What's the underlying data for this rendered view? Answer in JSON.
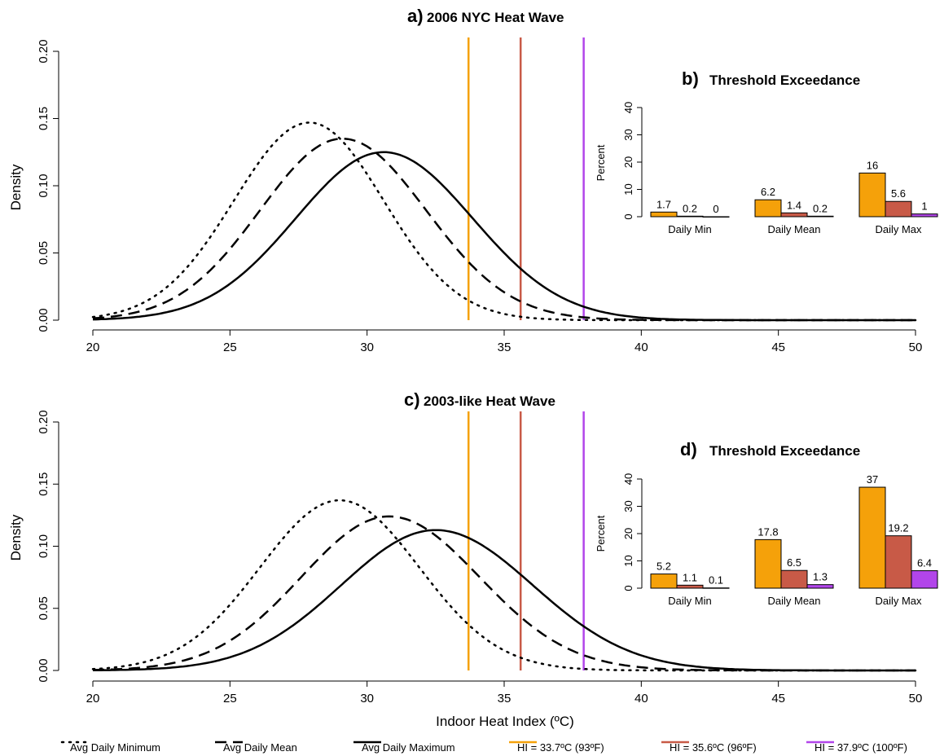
{
  "colors": {
    "t1": "#f5a10a",
    "t2": "#c85a47",
    "t3": "#b245ea",
    "curve": "#000000"
  },
  "legend": [
    {
      "label": "Avg Daily Minimum",
      "style": "dotted",
      "color": "#000000"
    },
    {
      "label": "Avg Daily Mean",
      "style": "dashed",
      "color": "#000000"
    },
    {
      "label": "Avg Daily Maximum",
      "style": "solid",
      "color": "#000000"
    },
    {
      "label": "HI = 33.7ºC (93ºF)",
      "style": "solid",
      "color": "#f5a10a"
    },
    {
      "label": "HI = 35.6ºC (96ºF)",
      "style": "solid",
      "color": "#c85a47"
    },
    {
      "label": "HI = 37.9ºC (100ºF)",
      "style": "solid",
      "color": "#b245ea"
    }
  ],
  "xlabel": "Indoor Heat Index (ºC)",
  "chart_data": [
    {
      "type": "line",
      "panel_letter": "a)",
      "title": "2006 NYC Heat Wave",
      "ylabel": "Density",
      "xlim": [
        20,
        50
      ],
      "ylim": [
        0,
        0.2
      ],
      "xticks": [
        20,
        25,
        30,
        35,
        40,
        45,
        50
      ],
      "yticks": [
        "0.00",
        "0.05",
        "0.10",
        "0.15",
        "0.20"
      ],
      "thresholds": [
        33.7,
        35.6,
        37.9
      ],
      "series": [
        {
          "name": "Avg Daily Minimum",
          "style": "dotted",
          "mean": 27.9,
          "peak": 0.147,
          "sd_left": 2.75,
          "sd_right": 2.7
        },
        {
          "name": "Avg Daily Mean",
          "style": "dashed",
          "mean": 29.1,
          "peak": 0.135,
          "sd_left": 3.0,
          "sd_right": 3.05
        },
        {
          "name": "Avg Daily Maximum",
          "style": "solid",
          "mean": 30.6,
          "peak": 0.125,
          "sd_left": 3.2,
          "sd_right": 3.25
        }
      ]
    },
    {
      "type": "bar",
      "panel_letter": "b)",
      "title": "Threshold Exceedance",
      "ylabel": "Percent",
      "ylim": [
        0,
        40
      ],
      "yticks": [
        "0",
        "10",
        "20",
        "30",
        "40"
      ],
      "categories": [
        "Daily Min",
        "Daily Mean",
        "Daily Max"
      ],
      "series": [
        {
          "name": "HI = 33.7ºC (93ºF)",
          "values": [
            1.7,
            6.2,
            16
          ],
          "labels": [
            "1.7",
            "6.2",
            "16"
          ]
        },
        {
          "name": "HI = 35.6ºC (96ºF)",
          "values": [
            0.2,
            1.4,
            5.6
          ],
          "labels": [
            "0.2",
            "1.4",
            "5.6"
          ]
        },
        {
          "name": "HI = 37.9ºC (100ºF)",
          "values": [
            0,
            0.2,
            1
          ],
          "labels": [
            "0",
            "0.2",
            "1"
          ]
        }
      ]
    },
    {
      "type": "line",
      "panel_letter": "c)",
      "title": "2003-like Heat Wave",
      "ylabel": "Density",
      "xlim": [
        20,
        50
      ],
      "ylim": [
        0,
        0.2
      ],
      "xticks": [
        20,
        25,
        30,
        35,
        40,
        45,
        50
      ],
      "yticks": [
        "0.00",
        "0.05",
        "0.10",
        "0.15",
        "0.20"
      ],
      "thresholds": [
        33.7,
        35.6,
        37.9
      ],
      "series": [
        {
          "name": "Avg Daily Minimum",
          "style": "dotted",
          "mean": 29.0,
          "peak": 0.137,
          "sd_left": 2.9,
          "sd_right": 2.9
        },
        {
          "name": "Avg Daily Mean",
          "style": "dashed",
          "mean": 30.8,
          "peak": 0.124,
          "sd_left": 3.2,
          "sd_right": 3.3
        },
        {
          "name": "Avg Daily Maximum",
          "style": "solid",
          "mean": 32.5,
          "peak": 0.113,
          "sd_left": 3.45,
          "sd_right": 3.55
        }
      ]
    },
    {
      "type": "bar",
      "panel_letter": "d)",
      "title": "Threshold Exceedance",
      "ylabel": "Percent",
      "ylim": [
        0,
        40
      ],
      "yticks": [
        "0",
        "10",
        "20",
        "30",
        "40"
      ],
      "categories": [
        "Daily Min",
        "Daily Mean",
        "Daily Max"
      ],
      "series": [
        {
          "name": "HI = 33.7ºC (93ºF)",
          "values": [
            5.2,
            17.8,
            37
          ],
          "labels": [
            "5.2",
            "17.8",
            "37"
          ]
        },
        {
          "name": "HI = 35.6ºC (96ºF)",
          "values": [
            1.1,
            6.5,
            19.2
          ],
          "labels": [
            "1.1",
            "6.5",
            "19.2"
          ]
        },
        {
          "name": "HI = 37.9ºC (100ºF)",
          "values": [
            0.1,
            1.3,
            6.4
          ],
          "labels": [
            "0.1",
            "1.3",
            "6.4"
          ]
        }
      ]
    }
  ]
}
